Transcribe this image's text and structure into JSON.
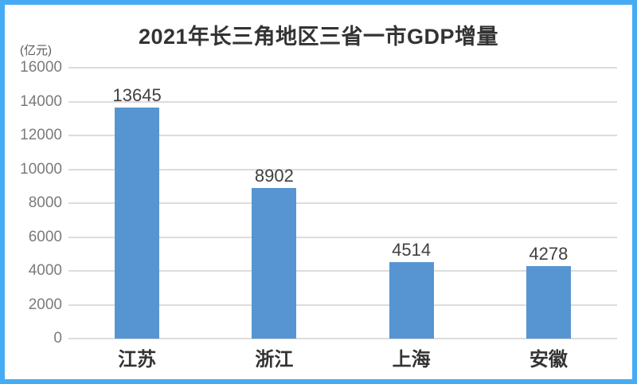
{
  "page": {
    "border_color": "#47abf3",
    "background_color": "#ffffff"
  },
  "chart_data": {
    "type": "bar",
    "title": "2021年长三角地区三省一市GDP增量",
    "unit_label": "(亿元)",
    "categories": [
      "江苏",
      "浙江",
      "上海",
      "安徽"
    ],
    "values": [
      13645,
      8902,
      4514,
      4278
    ],
    "value_labels": [
      13645,
      8902,
      4514,
      4278
    ],
    "xlabel": "",
    "ylabel": "亿元",
    "ylim": [
      0,
      16000
    ],
    "yticks": [
      0,
      2000,
      4000,
      6000,
      8000,
      10000,
      12000,
      14000,
      16000
    ],
    "grid": true,
    "legend_position": "none",
    "bar_color": "#5695d2",
    "gridline_color": "#dcdcdc",
    "title_color": "#333333",
    "tick_label_color": "#7b7b7b",
    "value_label_color": "#404040",
    "category_label_color": "#333333"
  }
}
